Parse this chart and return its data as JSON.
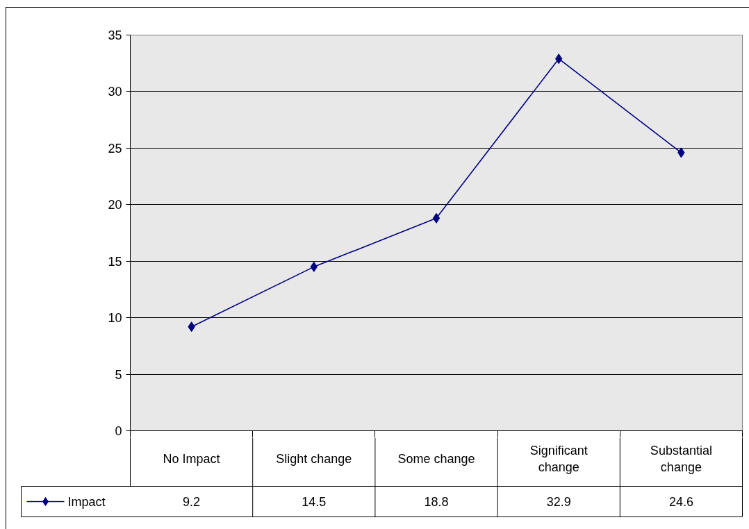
{
  "chart_data": {
    "type": "line",
    "categories": [
      "No Impact",
      "Slight change",
      "Some change",
      "Significant change",
      "Substantial change"
    ],
    "series": [
      {
        "name": "Impact",
        "color": "#000080",
        "values": [
          9.2,
          14.5,
          18.8,
          32.9,
          24.6
        ]
      }
    ],
    "ylim": [
      0,
      35
    ],
    "yticks": [
      0,
      5,
      10,
      15,
      20,
      25,
      30,
      35
    ],
    "grid": "y",
    "legend": "bottom left",
    "marker": "diamond",
    "line_style": "solid",
    "data_labels": true
  }
}
